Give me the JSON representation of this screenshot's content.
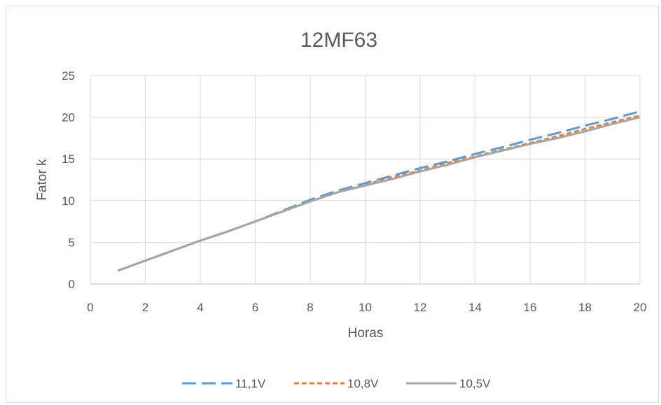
{
  "chart_data": {
    "type": "line",
    "title": "12MF63",
    "xlabel": "Horas",
    "ylabel": "Fator k",
    "xlim": [
      0,
      20
    ],
    "ylim": [
      0,
      25
    ],
    "xticks": [
      0,
      2,
      4,
      6,
      8,
      10,
      12,
      14,
      16,
      18,
      20
    ],
    "yticks": [
      0,
      5,
      10,
      15,
      20,
      25
    ],
    "grid": true,
    "legend_position": "bottom",
    "series": [
      {
        "name": "11,1V",
        "color": "#5B9BD5",
        "dash": "long-dash",
        "x": [
          1,
          2,
          3,
          4,
          5,
          6,
          7,
          8,
          9,
          10,
          11,
          12,
          13,
          14,
          15,
          16,
          17,
          18,
          19,
          20
        ],
        "y": [
          1.6,
          2.8,
          4.0,
          5.2,
          6.3,
          7.5,
          8.8,
          10.1,
          11.2,
          12.1,
          13.0,
          13.9,
          14.7,
          15.6,
          16.4,
          17.3,
          18.1,
          19.0,
          19.8,
          20.7
        ]
      },
      {
        "name": "10,8V",
        "color": "#ED7D31",
        "dash": "short-dash",
        "x": [
          1,
          2,
          3,
          4,
          5,
          6,
          7,
          8,
          9,
          10,
          11,
          12,
          13,
          14,
          15,
          16,
          17,
          18,
          19,
          20
        ],
        "y": [
          1.6,
          2.8,
          4.0,
          5.2,
          6.3,
          7.5,
          8.7,
          9.9,
          11.0,
          11.9,
          12.8,
          13.6,
          14.5,
          15.3,
          16.1,
          16.9,
          17.7,
          18.6,
          19.4,
          20.2
        ]
      },
      {
        "name": "10,5V",
        "color": "#A5A5A5",
        "dash": "solid",
        "x": [
          1,
          2,
          3,
          4,
          5,
          6,
          7,
          8,
          9,
          10,
          11,
          12,
          13,
          14,
          15,
          16,
          17,
          18,
          19,
          20
        ],
        "y": [
          1.6,
          2.8,
          4.0,
          5.2,
          6.3,
          7.5,
          8.7,
          9.9,
          11.0,
          11.8,
          12.6,
          13.5,
          14.3,
          15.2,
          16.0,
          16.8,
          17.5,
          18.3,
          19.2,
          20.0
        ]
      }
    ]
  }
}
